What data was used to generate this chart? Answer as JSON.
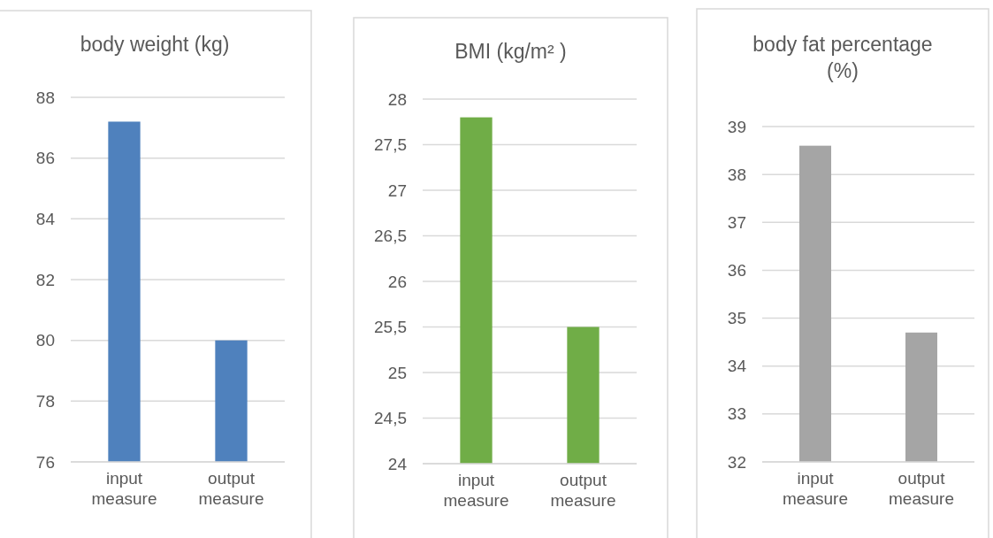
{
  "chart_data": [
    {
      "type": "bar",
      "title": "body weight (kg)",
      "categories": [
        "input measure",
        "output measure"
      ],
      "values": [
        87.2,
        80.0
      ],
      "color": "#4f81bd",
      "ylim": [
        76,
        88
      ],
      "yticks": [
        76,
        78,
        80,
        82,
        84,
        86,
        88
      ],
      "grid": "y"
    },
    {
      "type": "bar",
      "title": "BMI (kg/m² )",
      "categories": [
        "input measure",
        "output measure"
      ],
      "values": [
        27.8,
        25.5
      ],
      "color": "#70ad47",
      "ylim": [
        24,
        28
      ],
      "yticks": [
        24,
        {
          "value": 24.5,
          "label": "24,5"
        },
        25,
        {
          "value": 25.5,
          "label": "25,5"
        },
        26,
        {
          "value": 26.5,
          "label": "26,5"
        },
        27,
        {
          "value": 27.5,
          "label": "27,5"
        },
        28
      ],
      "grid": "y"
    },
    {
      "type": "bar",
      "title": "body fat percentage (%)",
      "categories": [
        "input measure",
        "output measure"
      ],
      "values": [
        38.6,
        34.7
      ],
      "color": "#a5a5a5",
      "ylim": [
        32,
        39
      ],
      "yticks": [
        32,
        33,
        34,
        35,
        36,
        37,
        38,
        39
      ],
      "grid": "y"
    }
  ]
}
